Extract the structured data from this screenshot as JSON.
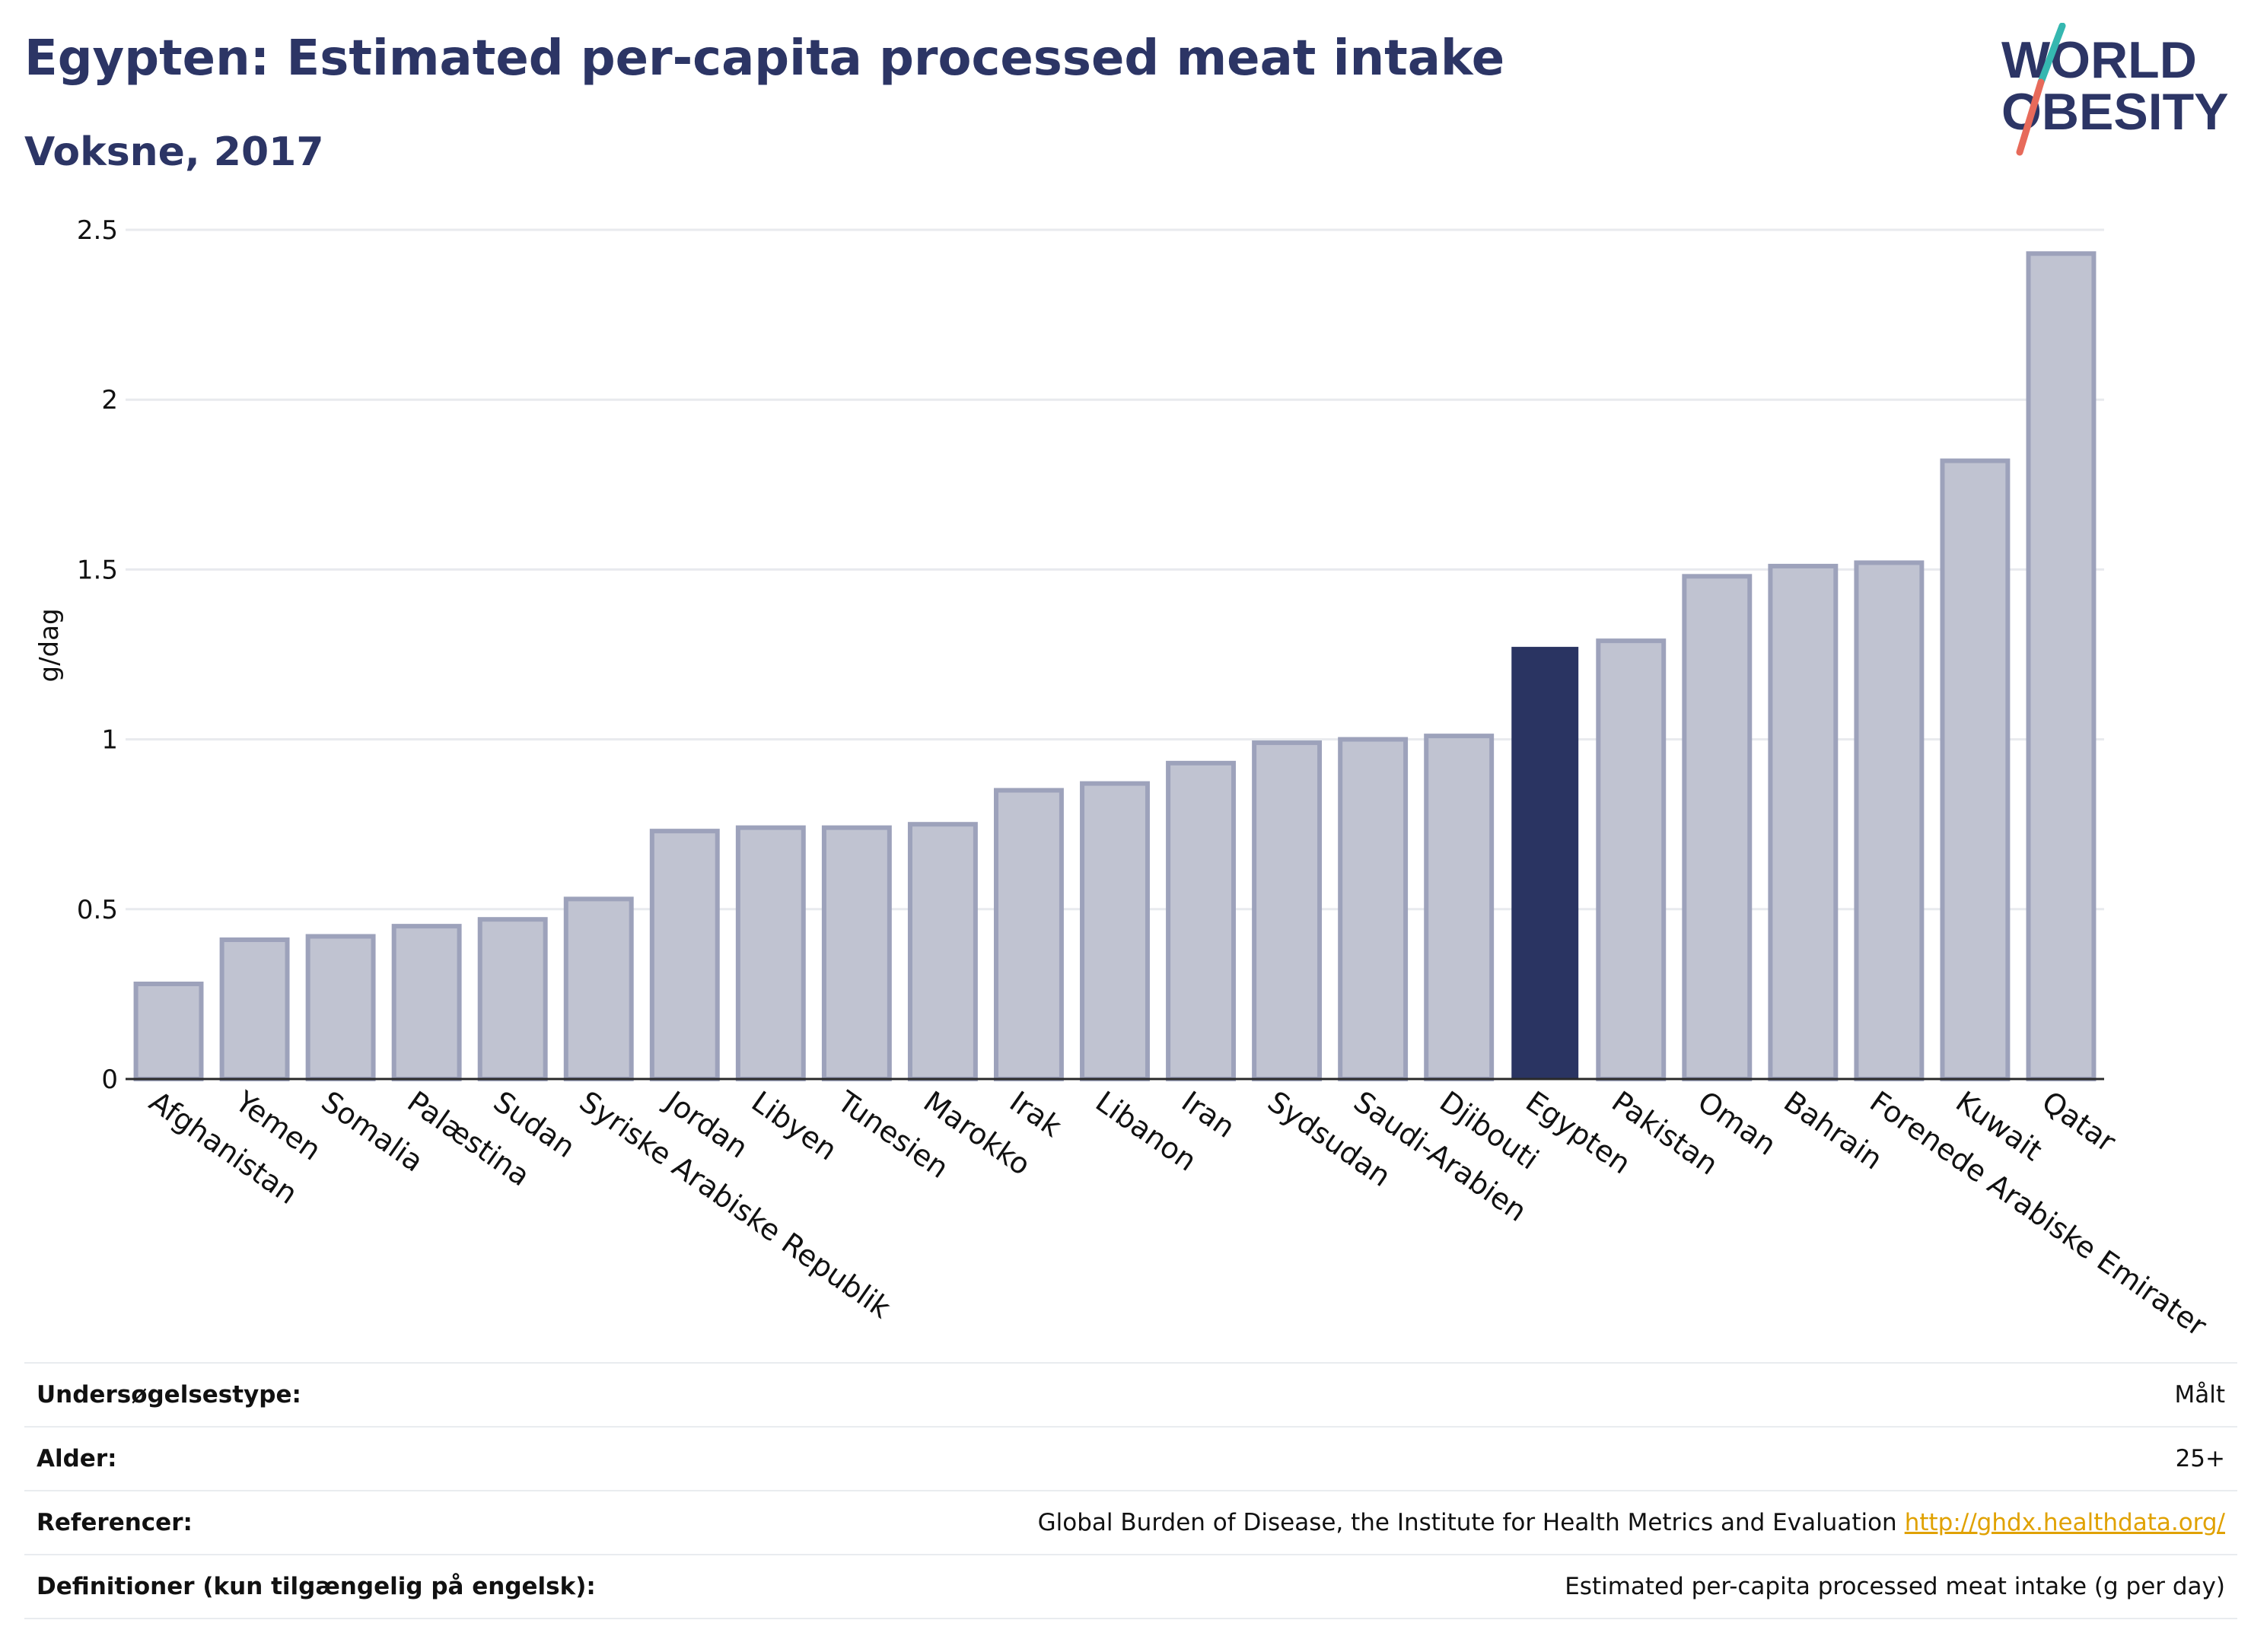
{
  "header": {
    "title": "Egypten: Estimated per-capita processed meat intake",
    "subtitle": "Voksne, 2017"
  },
  "logo": {
    "line1": "WORLD",
    "line2": "OBESITY",
    "colors": {
      "text": "#2c3565",
      "slash_teal": "#35b7b0",
      "slash_coral": "#e76a5a"
    }
  },
  "chart_data": {
    "type": "bar",
    "ylabel": "g/dag",
    "ylim": [
      0,
      2.5
    ],
    "yticks": [
      0,
      0.5,
      1,
      1.5,
      2,
      2.5
    ],
    "ytick_labels": [
      "0",
      "0.5",
      "1",
      "1.5",
      "2",
      "2.5"
    ],
    "categories": [
      "Afghanistan",
      "Yemen",
      "Somalia",
      "Palæstina",
      "Sudan",
      "Syriske Arabiske Republik",
      "Jordan",
      "Libyen",
      "Tunesien",
      "Marokko",
      "Irak",
      "Libanon",
      "Iran",
      "Sydsudan",
      "Saudi-Arabien",
      "Djibouti",
      "Egypten",
      "Pakistan",
      "Oman",
      "Bahrain",
      "Forenede Arabiske Emirater",
      "Kuwait",
      "Qatar"
    ],
    "values": [
      0.28,
      0.41,
      0.42,
      0.45,
      0.47,
      0.53,
      0.73,
      0.74,
      0.74,
      0.75,
      0.85,
      0.87,
      0.93,
      0.99,
      1.0,
      1.01,
      1.27,
      1.29,
      1.48,
      1.51,
      1.52,
      1.82,
      2.43
    ],
    "highlight": "Egypten",
    "grid": true,
    "colors": {
      "bar": "#c0c3d1",
      "bar_edge": "#9da2bb",
      "highlight": "#2a3462",
      "grid": "#e8eaee",
      "axis": "#2a2a2a"
    }
  },
  "info": {
    "rows": [
      {
        "label": "Undersøgelsestype:",
        "value": "Målt"
      },
      {
        "label": "Alder:",
        "value": "25+"
      },
      {
        "label": "Referencer:",
        "value": "Global Burden of Disease, the Institute for Health Metrics and Evaluation",
        "link": "http://ghdx.healthdata.org/"
      },
      {
        "label": "Definitioner (kun tilgængelig på engelsk):",
        "value": "Estimated per-capita processed meat intake (g per day)"
      }
    ]
  }
}
